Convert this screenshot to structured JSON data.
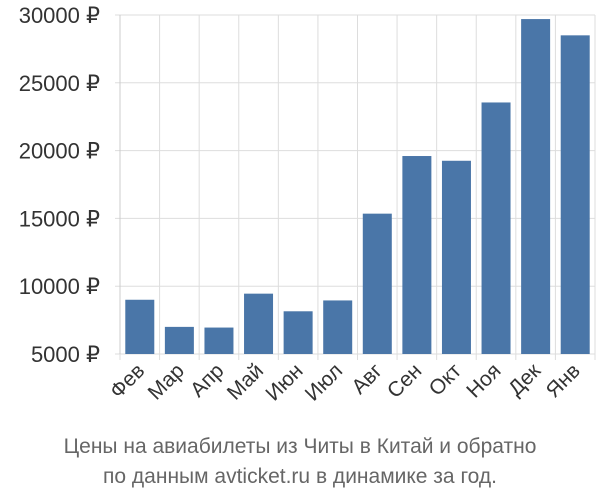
{
  "chart_data": {
    "type": "bar",
    "categories": [
      "Фев",
      "Мар",
      "Апр",
      "Май",
      "Июн",
      "Июл",
      "Авг",
      "Сен",
      "Окт",
      "Ноя",
      "Дек",
      "Янв"
    ],
    "values": [
      9000,
      7000,
      6950,
      9450,
      8150,
      8950,
      15350,
      19600,
      19250,
      23550,
      29700,
      28500
    ],
    "ytick_labels": [
      "5000 ₽",
      "10000 ₽",
      "15000 ₽",
      "20000 ₽",
      "25000 ₽",
      "30000 ₽"
    ],
    "ytick_values": [
      5000,
      10000,
      15000,
      20000,
      25000,
      30000
    ],
    "ylim": [
      5000,
      30000
    ],
    "grid": true,
    "bar_color": "#4a76a8",
    "grid_color": "#dddddd",
    "title": "",
    "xlabel": "",
    "ylabel": ""
  },
  "caption": {
    "line1": "Цены на авиабилеты из Читы в Китай и обратно",
    "line2": "по данным avticket.ru в динамике за год."
  }
}
